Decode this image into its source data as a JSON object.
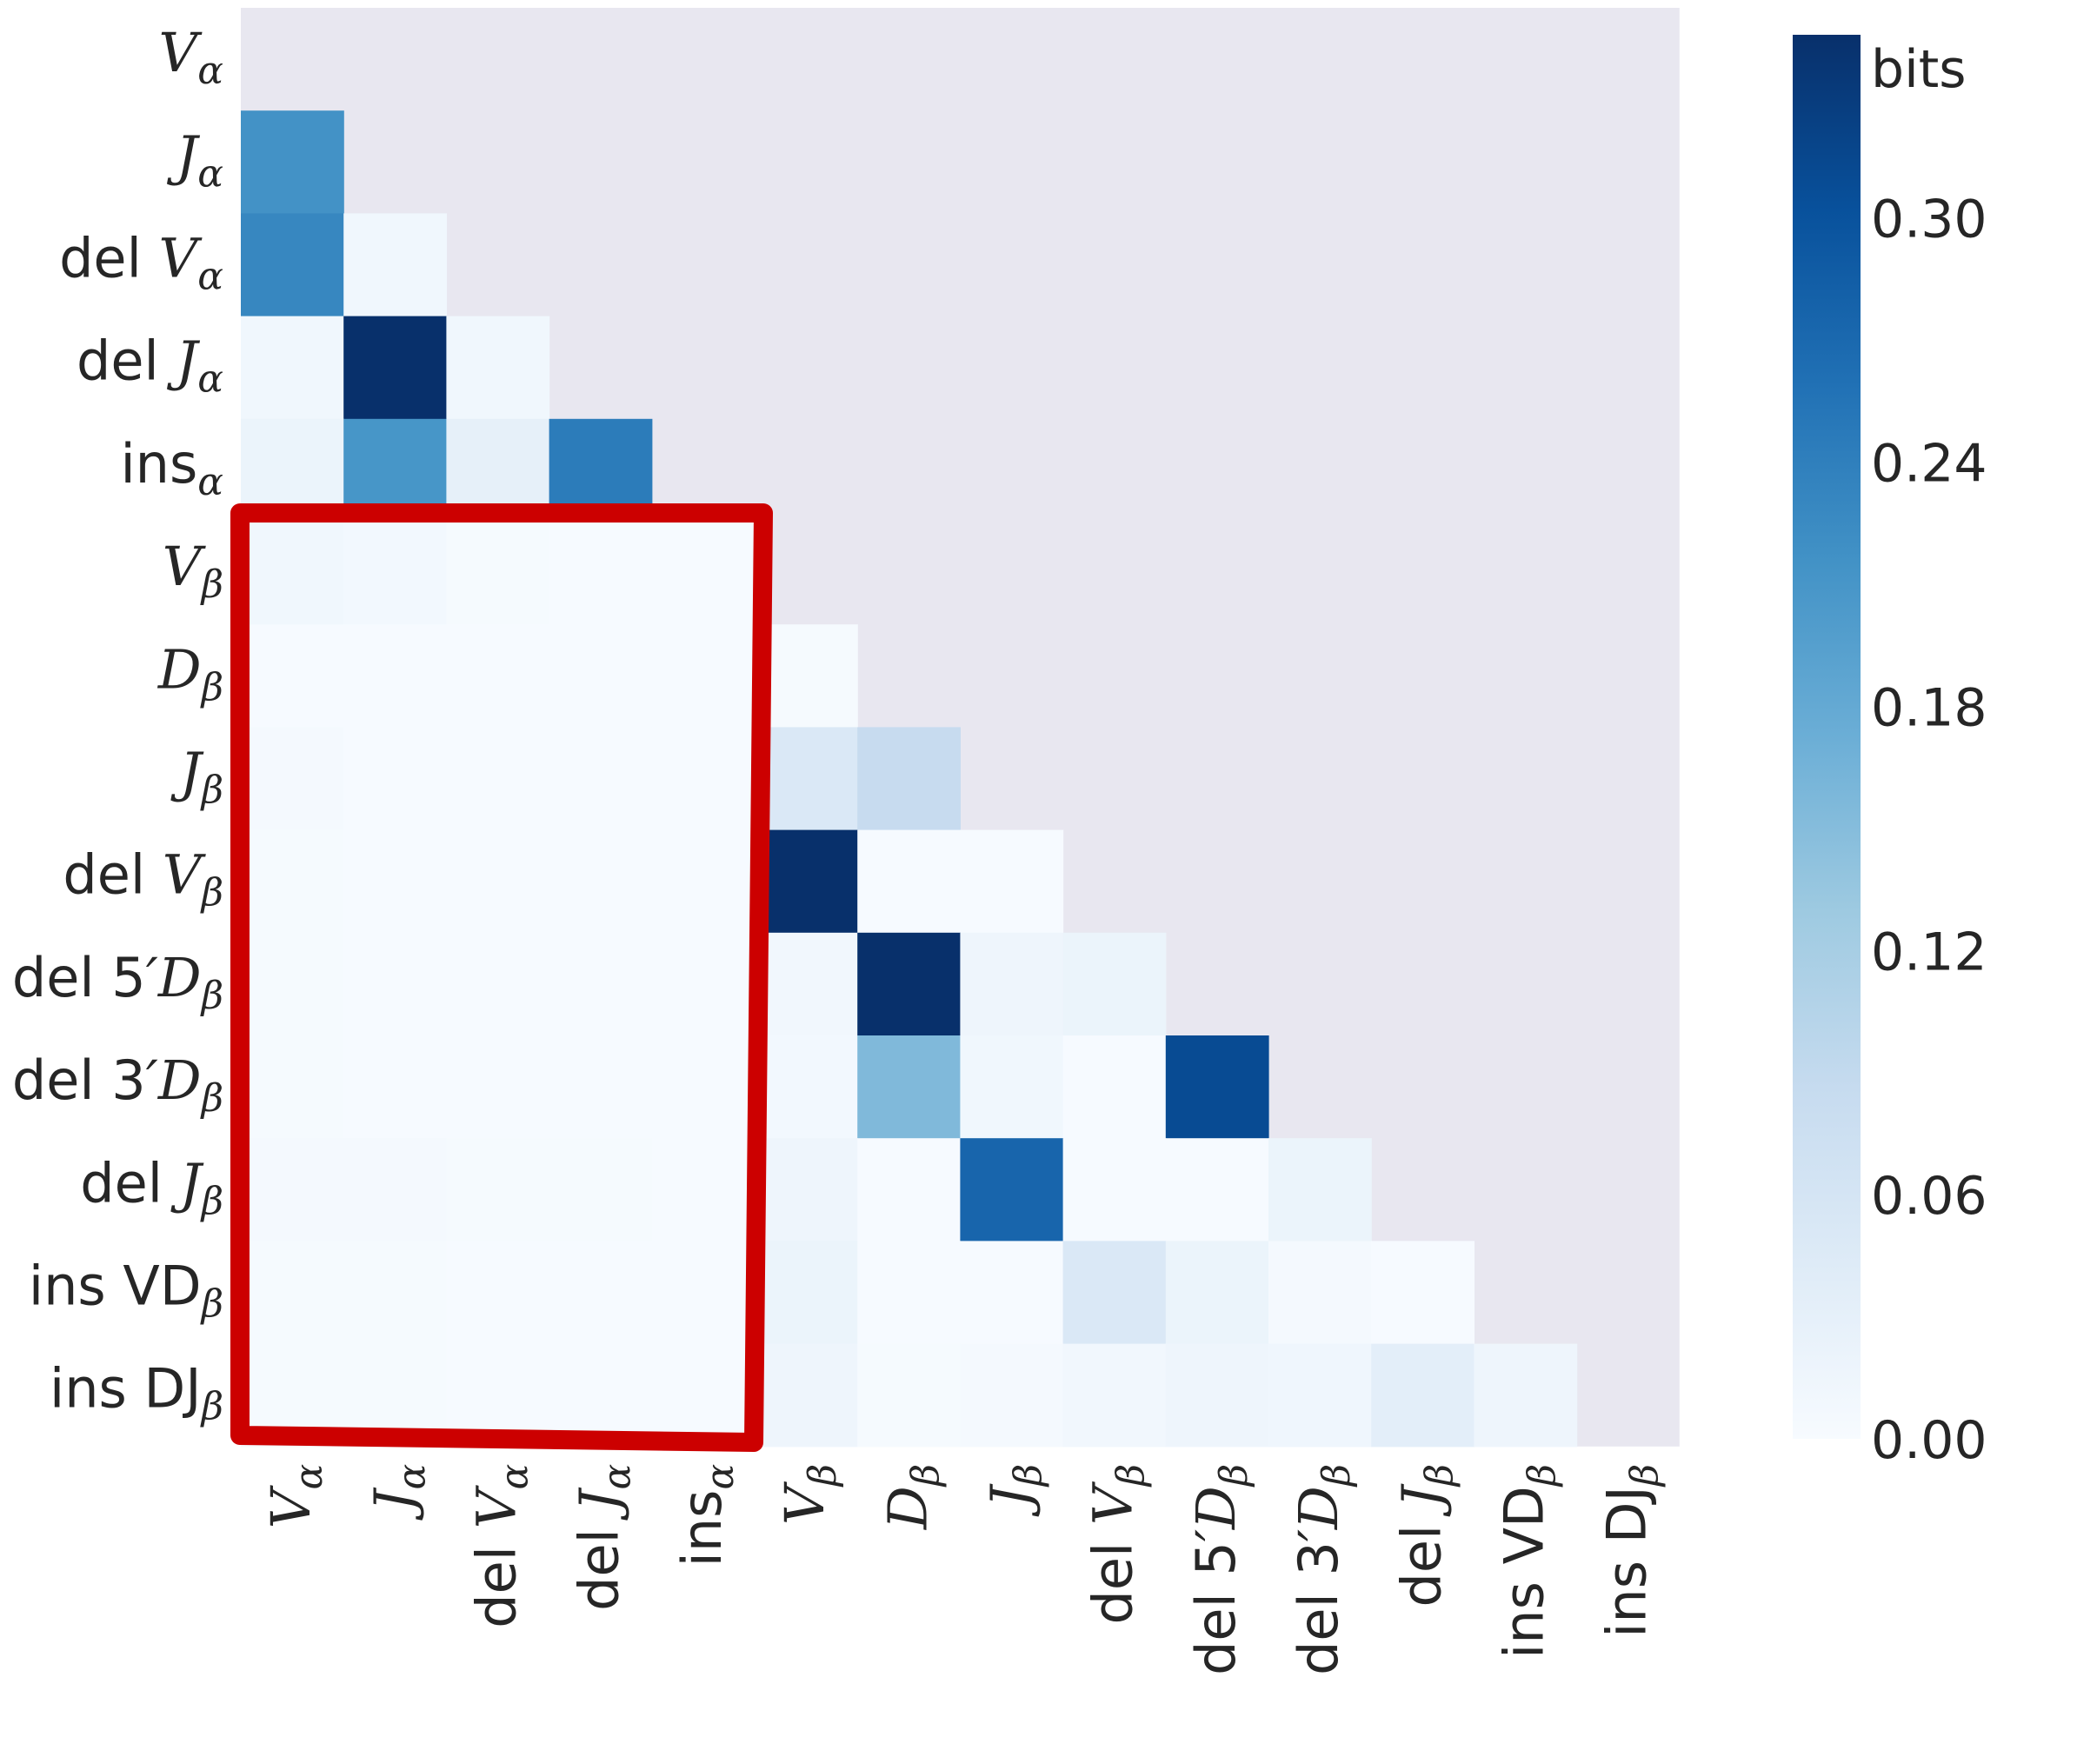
{
  "chart_data": {
    "type": "heatmap",
    "labels": [
      {
        "name": "Vα",
        "parts": [
          [
            "V",
            "i"
          ],
          [
            "α",
            "sub-i"
          ]
        ]
      },
      {
        "name": "Jα",
        "parts": [
          [
            "J",
            "i"
          ],
          [
            "α",
            "sub-i"
          ]
        ]
      },
      {
        "name": "del Vα",
        "parts": [
          [
            "del ",
            "n"
          ],
          [
            "V",
            "i"
          ],
          [
            "α",
            "sub-i"
          ]
        ]
      },
      {
        "name": "del Jα",
        "parts": [
          [
            "del ",
            "n"
          ],
          [
            "J",
            "i"
          ],
          [
            "α",
            "sub-i"
          ]
        ]
      },
      {
        "name": "insα",
        "parts": [
          [
            "ins",
            "n"
          ],
          [
            "α",
            "sub-i"
          ]
        ]
      },
      {
        "name": "Vβ",
        "parts": [
          [
            "V",
            "i"
          ],
          [
            "β",
            "sub-i"
          ]
        ]
      },
      {
        "name": "Dβ",
        "parts": [
          [
            "D",
            "i"
          ],
          [
            "β",
            "sub-i"
          ]
        ]
      },
      {
        "name": "Jβ",
        "parts": [
          [
            "J",
            "i"
          ],
          [
            "β",
            "sub-i"
          ]
        ]
      },
      {
        "name": "del Vβ",
        "parts": [
          [
            "del ",
            "n"
          ],
          [
            "V",
            "i"
          ],
          [
            "β",
            "sub-i"
          ]
        ]
      },
      {
        "name": "del 5′Dβ",
        "parts": [
          [
            "del 5",
            "n"
          ],
          [
            "′D",
            "i"
          ],
          [
            "β",
            "sub-i"
          ]
        ]
      },
      {
        "name": "del 3′Dβ",
        "parts": [
          [
            "del 3",
            "n"
          ],
          [
            "′D",
            "i"
          ],
          [
            "β",
            "sub-i"
          ]
        ]
      },
      {
        "name": "del Jβ",
        "parts": [
          [
            "del ",
            "n"
          ],
          [
            "J",
            "i"
          ],
          [
            "β",
            "sub-i"
          ]
        ]
      },
      {
        "name": "ins VDβ",
        "parts": [
          [
            "ins VD",
            "n"
          ],
          [
            "β",
            "sub-i"
          ]
        ]
      },
      {
        "name": "ins DJβ",
        "parts": [
          [
            "ins DJ",
            "n"
          ],
          [
            "β",
            "sub-i"
          ]
        ]
      }
    ],
    "values": [
      [],
      [
        0.215
      ],
      [
        0.23,
        0.012
      ],
      [
        0.012,
        0.345,
        0.012
      ],
      [
        0.02,
        0.21,
        0.03,
        0.245
      ],
      [
        0.012,
        0.008,
        0.003,
        0.002,
        0.002
      ],
      [
        0.002,
        0.002,
        0.002,
        0.002,
        0.002,
        0.003
      ],
      [
        0.005,
        0.002,
        0.002,
        0.002,
        0.002,
        0.05,
        0.085
      ],
      [
        0.003,
        0.002,
        0.002,
        0.002,
        0.002,
        0.345,
        0.002,
        0.002
      ],
      [
        0.003,
        0.002,
        0.002,
        0.002,
        0.002,
        0.01,
        0.345,
        0.015,
        0.02
      ],
      [
        0.003,
        0.002,
        0.002,
        0.002,
        0.002,
        0.008,
        0.155,
        0.012,
        0.002,
        0.31
      ],
      [
        0.006,
        0.006,
        0.004,
        0.003,
        0.002,
        0.015,
        0.002,
        0.275,
        0.002,
        0.002,
        0.02
      ],
      [
        0.003,
        0.003,
        0.002,
        0.002,
        0.002,
        0.02,
        0.002,
        0.002,
        0.05,
        0.02,
        0.005,
        0.002
      ],
      [
        0.003,
        0.003,
        0.002,
        0.002,
        0.002,
        0.015,
        0.004,
        0.006,
        0.01,
        0.015,
        0.013,
        0.035,
        0.015
      ]
    ],
    "mask": "upper triangle and diagonal",
    "colormap": "Blues",
    "vmin": 0,
    "vmax": 0.345,
    "colorbar": {
      "label": "bits",
      "ticks": [
        "0.00",
        "0.06",
        "0.12",
        "0.18",
        "0.24",
        "0.30"
      ],
      "tick_values": [
        0,
        0.06,
        0.12,
        0.18,
        0.24,
        0.3
      ]
    },
    "masked_color": "#e8e7f0",
    "highlight": {
      "rows": "Vβ to ins DJβ",
      "columns": "Vα to insα",
      "color": "#cc0000"
    }
  }
}
